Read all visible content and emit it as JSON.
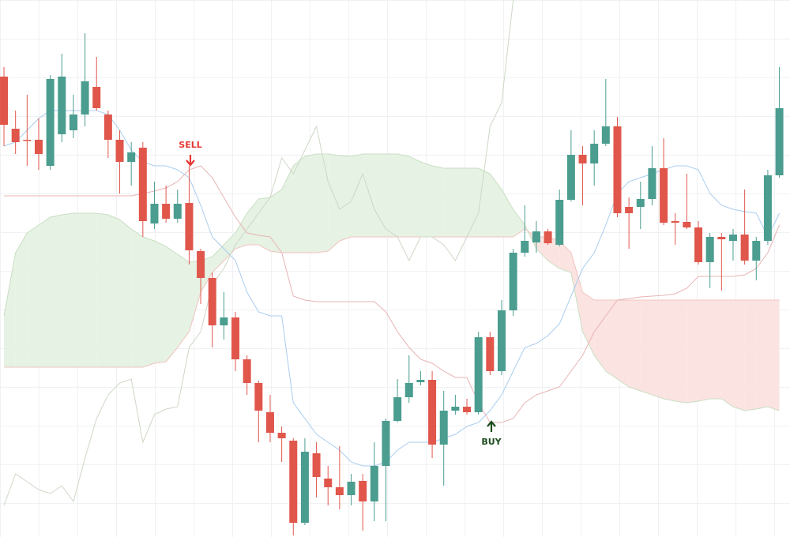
{
  "chart_data": {
    "type": "candlestick",
    "categories": [
      null,
      null,
      null,
      null,
      null,
      null,
      null,
      null,
      null,
      null,
      null,
      null,
      null,
      null,
      null,
      null,
      null,
      null,
      null,
      null,
      null,
      null,
      null,
      null,
      null,
      null,
      null,
      null,
      null,
      null,
      null,
      null,
      null,
      null,
      null,
      null,
      null,
      null,
      null,
      null,
      null,
      null,
      null,
      null,
      null,
      null,
      null,
      null,
      null,
      null,
      null,
      null,
      null,
      null,
      null,
      null,
      null,
      null,
      null,
      null,
      null,
      null,
      null,
      null,
      null,
      null,
      null,
      null
    ],
    "open": [
      583,
      517,
      503,
      503,
      470,
      510,
      515,
      535,
      570,
      535,
      503,
      475,
      493,
      397,
      422,
      403,
      423,
      362,
      328,
      268,
      278,
      225,
      195,
      158,
      132,
      122,
      18,
      106,
      74,
      63,
      53,
      71,
      45,
      90,
      147,
      177,
      196,
      199,
      117,
      160,
      165,
      158,
      253,
      210,
      287,
      360,
      373,
      387,
      370,
      427,
      484,
      473,
      498,
      520,
      418,
      418,
      428,
      467,
      400,
      399,
      392,
      348,
      380,
      375,
      383,
      350,
      375,
      458
    ],
    "high": [
      595,
      540,
      560,
      530,
      585,
      612,
      560,
      638,
      608,
      540,
      515,
      500,
      500,
      450,
      445,
      440,
      470,
      365,
      335,
      310,
      285,
      230,
      198,
      180,
      140,
      125,
      125,
      120,
      90,
      115,
      80,
      80,
      120,
      150,
      200,
      230,
      210,
      210,
      185,
      180,
      175,
      260,
      260,
      300,
      365,
      420,
      400,
      390,
      440,
      515,
      495,
      515,
      580,
      532,
      430,
      450,
      495,
      505,
      410,
      460,
      400,
      385,
      385,
      390,
      440,
      380,
      465,
      595
    ],
    "low": [
      495,
      485,
      470,
      465,
      465,
      500,
      505,
      520,
      540,
      480,
      435,
      445,
      380,
      390,
      398,
      398,
      345,
      295,
      240,
      250,
      210,
      180,
      120,
      120,
      95,
      2,
      15,
      50,
      40,
      35,
      40,
      8,
      20,
      20,
      145,
      170,
      192,
      100,
      65,
      155,
      155,
      155,
      205,
      205,
      280,
      355,
      360,
      370,
      368,
      425,
      420,
      445,
      495,
      405,
      365,
      390,
      420,
      395,
      370,
      390,
      345,
      315,
      312,
      350,
      345,
      325,
      370,
      455
    ],
    "close": [
      522,
      500,
      502,
      485,
      580,
      583,
      535,
      577,
      543,
      503,
      475,
      487,
      400,
      422,
      403,
      422,
      363,
      328,
      268,
      278,
      225,
      195,
      160,
      132,
      125,
      18,
      108,
      76,
      63,
      53,
      70,
      45,
      90,
      147,
      177,
      195,
      199,
      117,
      160,
      165,
      158,
      253,
      210,
      287,
      360,
      375,
      387,
      372,
      427,
      484,
      473,
      498,
      520,
      410,
      410,
      428,
      467,
      398,
      398,
      392,
      348,
      380,
      377,
      383,
      350,
      375,
      458,
      543
    ],
    "up_color": "#4a9d8f",
    "down_color": "#e0564b",
    "overlays": [
      {
        "color": "#a9cdef",
        "values": [
          495,
          500,
          515,
          530,
          540,
          540,
          540,
          540,
          540,
          535,
          515,
          490,
          475,
          470,
          470,
          465,
          455,
          420,
          380,
          365,
          350,
          310,
          285,
          280,
          280,
          170,
          150,
          130,
          120,
          110,
          95,
          90,
          90,
          95,
          110,
          120,
          120,
          120,
          125,
          130,
          140,
          145,
          160,
          180,
          210,
          240,
          245,
          255,
          270,
          305,
          340,
          360,
          395,
          435,
          450,
          455,
          460,
          465,
          470,
          470,
          465,
          435,
          420,
          415,
          412,
          410,
          380,
          410
        ]
      },
      {
        "color": "#e8b4b4",
        "values": [
          432,
          432,
          432,
          432,
          432,
          432,
          432,
          432,
          432,
          432,
          432,
          432,
          435,
          438,
          442,
          450,
          465,
          470,
          455,
          430,
          405,
          385,
          382,
          380,
          360,
          305,
          300,
          298,
          298,
          298,
          298,
          298,
          298,
          285,
          260,
          240,
          225,
          220,
          210,
          202,
          202,
          170,
          145,
          145,
          150,
          170,
          180,
          185,
          190,
          210,
          230,
          260,
          280,
          300,
          302,
          304,
          305,
          306,
          308,
          315,
          330,
          330,
          330,
          330,
          332,
          340,
          360,
          395
        ]
      },
      {
        "color": "#cdd8c6",
        "values": [
          40,
          80,
          70,
          60,
          55,
          65,
          45,
          100,
          150,
          180,
          195,
          200,
          120,
          155,
          162,
          165,
          240,
          260,
          320,
          340,
          370,
          390,
          410,
          430,
          480,
          460,
          490,
          520,
          450,
          415,
          425,
          460,
          415,
          390,
          380,
          350,
          380,
          380,
          370,
          350,
          380,
          410,
          520,
          550,
          680,
          null,
          null,
          null,
          null,
          null,
          null,
          null,
          null,
          null,
          null,
          null,
          null,
          null,
          null,
          null,
          null,
          null,
          null,
          null,
          null,
          null,
          null,
          null
        ]
      }
    ],
    "cloud": {
      "span_a": [
        280,
        360,
        385,
        395,
        405,
        408,
        410,
        410,
        410,
        408,
        402,
        390,
        380,
        375,
        368,
        358,
        348,
        350,
        355,
        370,
        385,
        410,
        428,
        430,
        440,
        470,
        482,
        485,
        485,
        483,
        482,
        485,
        485,
        485,
        485,
        482,
        475,
        470,
        467,
        467,
        467,
        467,
        460,
        440,
        415,
        395,
        365,
        350,
        340,
        335,
        260,
        230,
        210,
        200,
        190,
        185,
        180,
        175,
        172,
        170,
        172,
        175,
        175,
        165,
        160,
        162,
        165,
        160
      ],
      "span_b": [
        215,
        215,
        215,
        215,
        215,
        215,
        215,
        215,
        215,
        215,
        215,
        215,
        215,
        220,
        222,
        240,
        260,
        310,
        335,
        350,
        365,
        370,
        370,
        362,
        360,
        360,
        360,
        360,
        362,
        375,
        380,
        380,
        380,
        380,
        380,
        380,
        380,
        380,
        380,
        380,
        380,
        380,
        380,
        380,
        380,
        390,
        380,
        380,
        375,
        360,
        310,
        300,
        300,
        300,
        300,
        300,
        300,
        300,
        300,
        300,
        300,
        300,
        300,
        300,
        300,
        300,
        300,
        300
      ],
      "up_color": "#e6f2e3",
      "down_color": "#fbe3e1",
      "up_line": "#c9dfc4",
      "down_line": "#f0c4c0"
    },
    "annotations": [
      {
        "text": "SELL",
        "color": "#e53935"
      },
      {
        "text": "BUY",
        "color": "#1e4d1e"
      }
    ],
    "ylim": [
      0,
      680
    ]
  }
}
